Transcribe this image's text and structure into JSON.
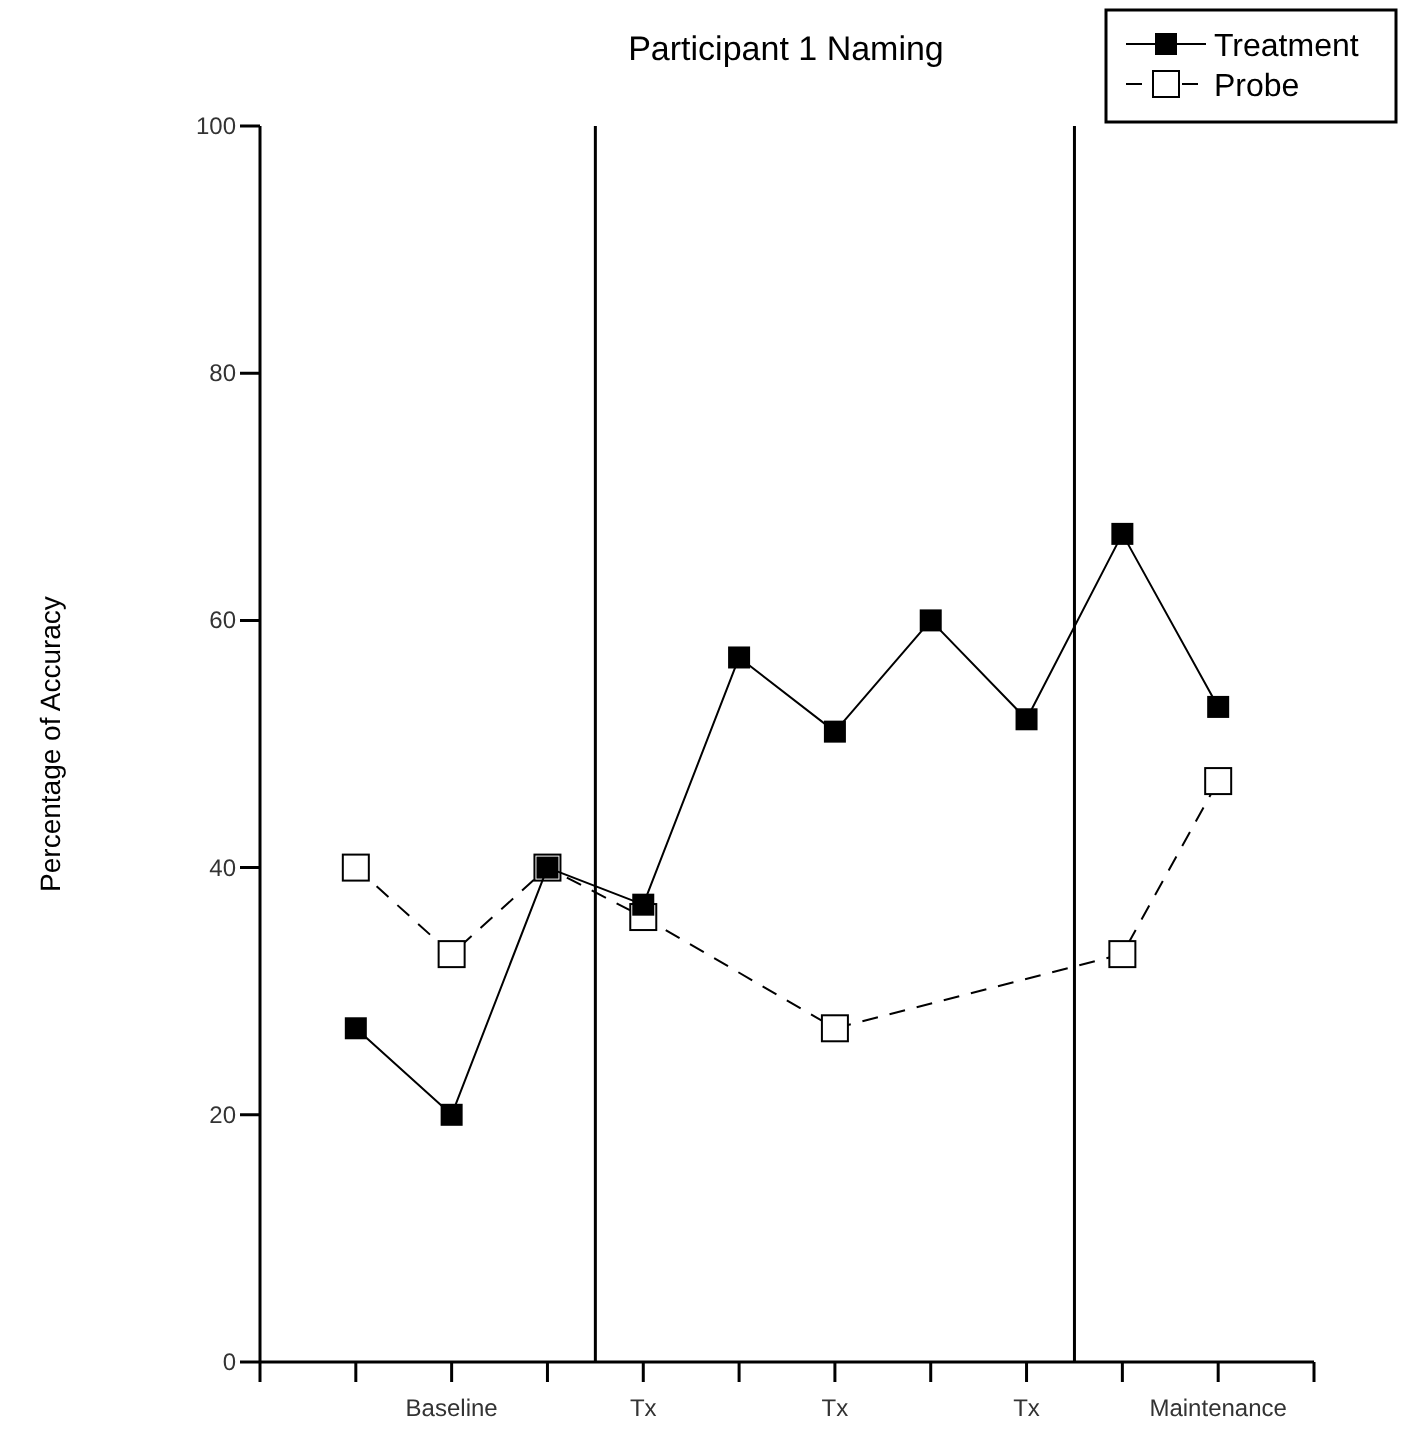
{
  "chart_data": {
    "type": "line",
    "title": "Participant 1 Naming",
    "ylabel": "Percentage of Accuracy",
    "categories": [
      null,
      "Baseline",
      null,
      "Tx",
      null,
      "Tx",
      null,
      "Tx",
      null,
      "Maintenance"
    ],
    "ylim": [
      0,
      100
    ],
    "yticks": [
      0,
      20,
      40,
      60,
      80,
      100
    ],
    "series": [
      {
        "name": "Probe",
        "color": "#000000",
        "values": [
          40,
          33,
          40,
          36,
          null,
          27,
          null,
          null,
          33,
          47
        ],
        "marker": "square",
        "line_style": "dashed"
      },
      {
        "name": "Treatment",
        "color": "#000000",
        "values": [
          27,
          20,
          40,
          37,
          57,
          51,
          60,
          52,
          67,
          53
        ],
        "marker": "square",
        "line_style": "solid"
      }
    ],
    "legend": "top right",
    "grid": false
  }
}
